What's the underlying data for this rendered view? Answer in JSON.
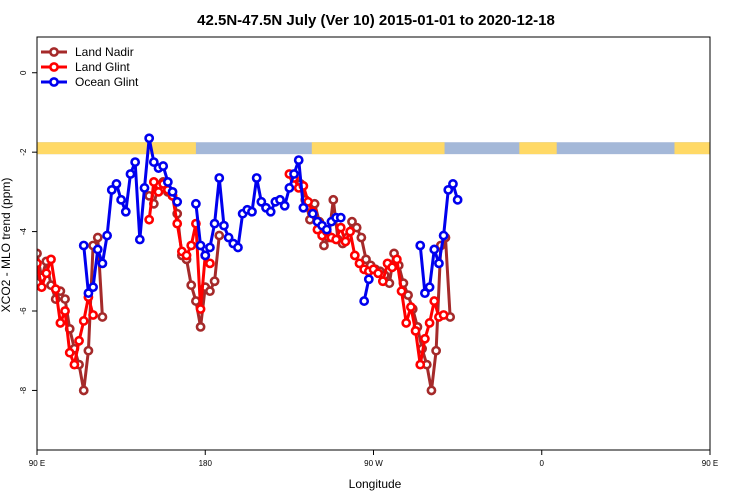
{
  "chart_data": {
    "type": "line",
    "title": "42.5N-47.5N July (Ver 10)   2015-01-01 to 2020-12-18",
    "xlabel": "Longitude",
    "ylabel": "XCO2 - MLO trend (ppm)",
    "xlim": [
      90,
      450
    ],
    "ylim": [
      -9.5,
      0.9
    ],
    "x_ticks": [
      {
        "value": 90,
        "label": "90 E"
      },
      {
        "value": 180,
        "label": "180"
      },
      {
        "value": 270,
        "label": "90 W"
      },
      {
        "value": 360,
        "label": "0"
      },
      {
        "value": 450,
        "label": "90 E"
      },
      {
        "value": 540,
        "label": "180"
      }
    ],
    "y_ticks": [
      0,
      -2,
      -4,
      -6,
      -8
    ],
    "legend_position": "top-left",
    "land_sea_strip": {
      "y_range": [
        -1.75,
        -2.05
      ],
      "land_color": "#ffd966",
      "ocean_color": "#a4b8d8",
      "land_segments": [
        [
          90,
          175
        ],
        [
          237,
          308
        ],
        [
          348,
          368
        ],
        [
          431,
          540
        ]
      ]
    },
    "series": [
      {
        "name": "Land Nadir",
        "color": "#a52a2a",
        "points": [
          [
            90,
            -4.55
          ],
          [
            92.5,
            -5.15
          ],
          [
            95,
            -4.75
          ],
          [
            97.5,
            -5.35
          ],
          [
            100,
            -5.7
          ],
          [
            102.5,
            -5.5
          ],
          [
            105,
            -5.7
          ],
          [
            107.5,
            -6.45
          ],
          [
            110,
            -6.95
          ],
          [
            112.5,
            -7.35
          ],
          [
            115,
            -8.0
          ],
          [
            117.5,
            -7.0
          ],
          [
            120,
            -4.35
          ],
          [
            122.5,
            -4.15
          ],
          [
            125,
            -6.15
          ],
          [
            150,
            -3.1
          ],
          [
            152.5,
            -3.3
          ],
          [
            155,
            -2.85
          ],
          [
            157.5,
            -2.75
          ],
          [
            160,
            -3.0
          ],
          [
            162.5,
            -3.1
          ],
          [
            165,
            -3.55
          ],
          [
            167.5,
            -4.6
          ],
          [
            170,
            -4.7
          ],
          [
            172.5,
            -5.35
          ],
          [
            175,
            -5.75
          ],
          [
            177.5,
            -6.4
          ],
          [
            180,
            -5.4
          ],
          [
            182.5,
            -5.5
          ],
          [
            185,
            -5.25
          ],
          [
            187.5,
            -4.1
          ],
          [
            231,
            -2.8
          ],
          [
            233.5,
            -3.2
          ],
          [
            236,
            -3.7
          ],
          [
            238.5,
            -3.3
          ],
          [
            241,
            -3.75
          ],
          [
            243.5,
            -4.35
          ],
          [
            246,
            -4.15
          ],
          [
            248.5,
            -3.2
          ],
          [
            251,
            -4.2
          ],
          [
            253.5,
            -4.3
          ],
          [
            256,
            -4.15
          ],
          [
            258.5,
            -3.75
          ],
          [
            261,
            -3.9
          ],
          [
            263.5,
            -4.15
          ],
          [
            266,
            -4.7
          ],
          [
            268.5,
            -4.85
          ],
          [
            271,
            -4.95
          ],
          [
            273.5,
            -5.0
          ],
          [
            276,
            -5.1
          ],
          [
            278.5,
            -5.3
          ],
          [
            281,
            -4.55
          ],
          [
            283.5,
            -4.85
          ],
          [
            286,
            -5.3
          ],
          [
            288.5,
            -5.6
          ],
          [
            291,
            -5.95
          ],
          [
            293.5,
            -6.4
          ],
          [
            296,
            -6.95
          ],
          [
            298.5,
            -7.35
          ],
          [
            301,
            -8.0
          ],
          [
            303.5,
            -7.0
          ],
          [
            306,
            -4.35
          ],
          [
            308.5,
            -4.15
          ],
          [
            311,
            -6.15
          ]
        ]
      },
      {
        "name": "Land Glint",
        "color": "#ff0000",
        "points": [
          [
            90,
            -4.8
          ],
          [
            92.5,
            -5.4
          ],
          [
            95,
            -5.05
          ],
          [
            97.5,
            -4.7
          ],
          [
            100,
            -5.45
          ],
          [
            102.5,
            -6.3
          ],
          [
            105,
            -6.0
          ],
          [
            107.5,
            -7.05
          ],
          [
            110,
            -7.35
          ],
          [
            112.5,
            -6.75
          ],
          [
            115,
            -6.25
          ],
          [
            117.5,
            -5.65
          ],
          [
            120,
            -6.1
          ],
          [
            150,
            -3.7
          ],
          [
            152.5,
            -2.75
          ],
          [
            155,
            -3.0
          ],
          [
            157.5,
            -2.8
          ],
          [
            160,
            -2.95
          ],
          [
            162.5,
            -3.1
          ],
          [
            165,
            -3.8
          ],
          [
            167.5,
            -4.5
          ],
          [
            170,
            -4.6
          ],
          [
            172.5,
            -4.35
          ],
          [
            175,
            -3.8
          ],
          [
            177.5,
            -5.95
          ],
          [
            180,
            -4.6
          ],
          [
            182.5,
            -4.8
          ],
          [
            225,
            -2.55
          ],
          [
            227.5,
            -2.65
          ],
          [
            230,
            -2.9
          ],
          [
            232.5,
            -2.85
          ],
          [
            235,
            -3.25
          ],
          [
            237.5,
            -3.5
          ],
          [
            240,
            -3.95
          ],
          [
            242.5,
            -4.1
          ],
          [
            245,
            -4.0
          ],
          [
            247.5,
            -4.15
          ],
          [
            250,
            -4.2
          ],
          [
            252.5,
            -3.9
          ],
          [
            255,
            -4.25
          ],
          [
            257.5,
            -4.0
          ],
          [
            260,
            -4.6
          ],
          [
            262.5,
            -4.8
          ],
          [
            265,
            -4.95
          ],
          [
            267.5,
            -5.0
          ],
          [
            270,
            -4.95
          ],
          [
            272.5,
            -5.05
          ],
          [
            275,
            -5.25
          ],
          [
            277.5,
            -4.8
          ],
          [
            280,
            -4.9
          ],
          [
            282.5,
            -4.7
          ],
          [
            285,
            -5.5
          ],
          [
            287.5,
            -6.3
          ],
          [
            290,
            -5.9
          ],
          [
            292.5,
            -6.5
          ],
          [
            295,
            -7.35
          ],
          [
            297.5,
            -6.7
          ],
          [
            300,
            -6.3
          ],
          [
            302.5,
            -5.75
          ],
          [
            305,
            -6.15
          ],
          [
            307.5,
            -6.1
          ]
        ]
      },
      {
        "name": "Ocean Glint",
        "color": "#0000ee",
        "points": [
          [
            115,
            -4.35
          ],
          [
            117.5,
            -5.55
          ],
          [
            120,
            -5.4
          ],
          [
            122.5,
            -4.45
          ],
          [
            125,
            -4.8
          ],
          [
            127.5,
            -4.1
          ],
          [
            130,
            -2.95
          ],
          [
            132.5,
            -2.8
          ],
          [
            135,
            -3.2
          ],
          [
            137.5,
            -3.5
          ],
          [
            140,
            -2.55
          ],
          [
            142.5,
            -2.25
          ],
          [
            145,
            -4.2
          ],
          [
            147.5,
            -2.9
          ],
          [
            150,
            -1.65
          ],
          [
            152.5,
            -2.25
          ],
          [
            155,
            -2.4
          ],
          [
            157.5,
            -2.35
          ],
          [
            160,
            -2.75
          ],
          [
            162.5,
            -3.0
          ],
          [
            165,
            -3.25
          ],
          [
            175,
            -3.3
          ],
          [
            177.5,
            -4.35
          ],
          [
            180,
            -4.6
          ],
          [
            182.5,
            -4.4
          ],
          [
            185,
            -3.8
          ],
          [
            187.5,
            -2.65
          ],
          [
            190,
            -3.85
          ],
          [
            192.5,
            -4.15
          ],
          [
            195,
            -4.3
          ],
          [
            197.5,
            -4.4
          ],
          [
            200,
            -3.55
          ],
          [
            202.5,
            -3.45
          ],
          [
            205,
            -3.5
          ],
          [
            207.5,
            -2.65
          ],
          [
            210,
            -3.25
          ],
          [
            212.5,
            -3.4
          ],
          [
            215,
            -3.5
          ],
          [
            217.5,
            -3.25
          ],
          [
            220,
            -3.2
          ],
          [
            222.5,
            -3.35
          ],
          [
            225,
            -2.9
          ],
          [
            227.5,
            -2.55
          ],
          [
            230,
            -2.2
          ],
          [
            232.5,
            -3.4
          ],
          [
            237.5,
            -3.55
          ],
          [
            240,
            -3.75
          ],
          [
            242.5,
            -3.85
          ],
          [
            245,
            -3.95
          ],
          [
            247.5,
            -3.75
          ],
          [
            250,
            -3.65
          ],
          [
            252.5,
            -3.65
          ],
          [
            265,
            -5.75
          ],
          [
            267.5,
            -5.2
          ],
          [
            295,
            -4.35
          ],
          [
            297.5,
            -5.55
          ],
          [
            300,
            -5.4
          ],
          [
            302.5,
            -4.45
          ],
          [
            305,
            -4.8
          ],
          [
            307.5,
            -4.1
          ],
          [
            310,
            -2.95
          ],
          [
            312.5,
            -2.8
          ],
          [
            315,
            -3.2
          ]
        ]
      }
    ]
  }
}
